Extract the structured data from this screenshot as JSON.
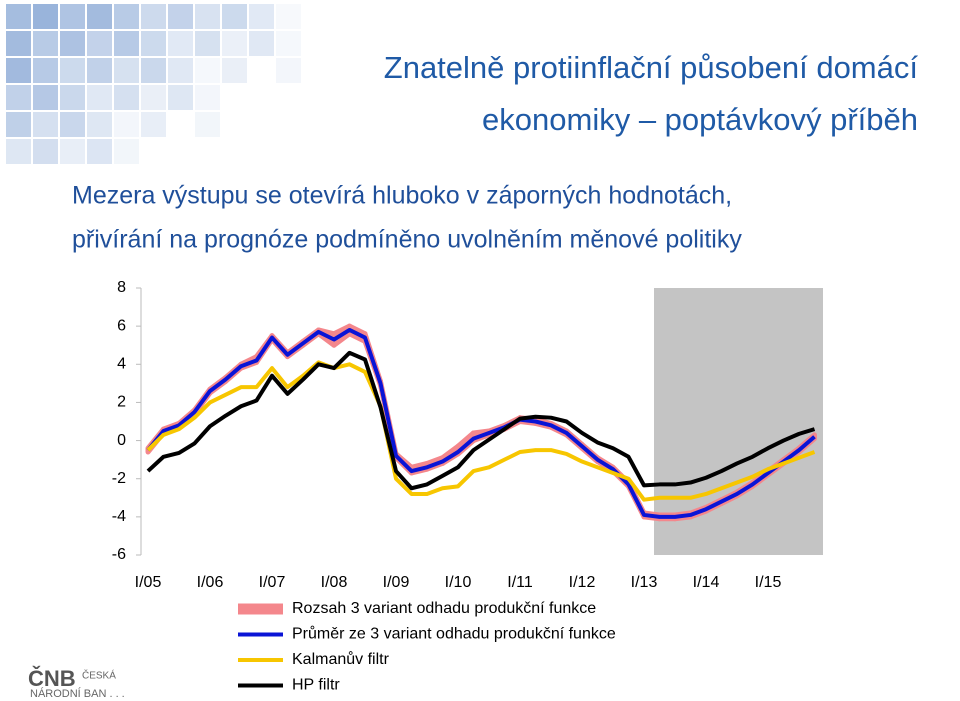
{
  "slide": {
    "title": [
      "Znatelně protiinflační působení domácí",
      "ekonomiky – poptávkový příběh"
    ],
    "logo": {
      "mark": "ČNB",
      "line1": "ČESKÁ",
      "line2": "NÁRODNÍ BAN . . ."
    }
  },
  "chart_data": {
    "type": "line",
    "subtitle": [
      "Mezera výstupu se otevírá hluboko v záporných hodnotách,",
      "přivírání na prognóze podmíněno uvolněním měnové politiky"
    ],
    "categories": [
      "I/05",
      null,
      null,
      null,
      "I/06",
      null,
      null,
      null,
      "I/07",
      null,
      null,
      null,
      "I/08",
      null,
      null,
      null,
      "I/09",
      null,
      null,
      null,
      "I/10",
      null,
      null,
      null,
      "I/11",
      null,
      null,
      null,
      "I/12",
      null,
      null,
      null,
      "I/13",
      null,
      null,
      null,
      "I/14",
      null,
      null,
      null,
      "I/15",
      null,
      null,
      null
    ],
    "ylim": [
      -6,
      8
    ],
    "yticks": [
      -6,
      -4,
      -2,
      0,
      2,
      4,
      6,
      8
    ],
    "legend": "bottom",
    "series": [
      {
        "name": "Rozsah 3 variant odhadu produkční funkce",
        "color": "#f4878c",
        "low": [
          -0.6,
          0.4,
          0.7,
          1.4,
          2.5,
          3.1,
          3.8,
          4.1,
          5.3,
          4.4,
          5.0,
          5.6,
          5.0,
          5.6,
          5.2,
          2.9,
          -0.9,
          -1.7,
          -1.5,
          -1.2,
          -0.7,
          0.0,
          0.3,
          0.6,
          1.0,
          0.9,
          0.7,
          0.3,
          -0.4,
          -1.1,
          -1.6,
          -2.4,
          -4.0,
          -4.1,
          -4.1,
          -4.0,
          -3.7,
          -3.3,
          -2.9,
          -2.4,
          -1.8,
          -1.2,
          -0.6,
          0.1
        ],
        "high": [
          -0.4,
          0.6,
          0.9,
          1.6,
          2.7,
          3.3,
          4.0,
          4.4,
          5.5,
          4.6,
          5.2,
          5.8,
          5.6,
          6.0,
          5.6,
          3.1,
          -0.7,
          -1.4,
          -1.2,
          -0.9,
          -0.3,
          0.4,
          0.5,
          0.8,
          1.2,
          1.1,
          0.9,
          0.5,
          -0.2,
          -0.9,
          -1.4,
          -2.2,
          -3.8,
          -3.9,
          -3.9,
          -3.8,
          -3.5,
          -3.1,
          -2.7,
          -2.2,
          -1.6,
          -1.0,
          -0.4,
          0.3
        ]
      },
      {
        "name": "Průměr ze 3 variant odhadu produkční funkce",
        "color": "#0a14d6",
        "values": [
          -0.5,
          0.5,
          0.8,
          1.5,
          2.6,
          3.2,
          3.9,
          4.2,
          5.4,
          4.5,
          5.1,
          5.7,
          5.3,
          5.8,
          5.4,
          3.0,
          -0.8,
          -1.6,
          -1.4,
          -1.1,
          -0.6,
          0.1,
          0.4,
          0.7,
          1.1,
          1.0,
          0.8,
          0.4,
          -0.3,
          -1.0,
          -1.5,
          -2.3,
          -3.9,
          -4.0,
          -4.0,
          -3.9,
          -3.6,
          -3.2,
          -2.8,
          -2.3,
          -1.7,
          -1.1,
          -0.5,
          0.2
        ]
      },
      {
        "name": "Kalmanův filtr",
        "color": "#f7c600",
        "values": [
          -0.5,
          0.3,
          0.6,
          1.2,
          2.0,
          2.4,
          2.8,
          2.8,
          3.8,
          2.8,
          3.4,
          4.1,
          3.8,
          4.0,
          3.6,
          1.8,
          -2.0,
          -2.8,
          -2.8,
          -2.5,
          -2.4,
          -1.6,
          -1.4,
          -1.0,
          -0.6,
          -0.5,
          -0.5,
          -0.7,
          -1.1,
          -1.4,
          -1.7,
          -2.0,
          -3.1,
          -3.0,
          -3.0,
          -3.0,
          -2.8,
          -2.5,
          -2.2,
          -1.9,
          -1.5,
          -1.2,
          -0.9,
          -0.6
        ]
      },
      {
        "name": "HP filtr",
        "color": "#000000",
        "values": [
          -1.6,
          -0.85,
          -0.65,
          -0.15,
          0.75,
          1.3,
          1.8,
          2.1,
          3.4,
          2.45,
          3.2,
          4.0,
          3.8,
          4.6,
          4.25,
          1.75,
          -1.6,
          -2.5,
          -2.3,
          -1.85,
          -1.4,
          -0.5,
          0.05,
          0.6,
          1.15,
          1.25,
          1.2,
          1.0,
          0.4,
          -0.1,
          -0.4,
          -0.85,
          -2.35,
          -2.3,
          -2.3,
          -2.2,
          -1.95,
          -1.6,
          -1.2,
          -0.85,
          -0.4,
          0.0,
          0.35,
          0.6
        ]
      }
    ]
  }
}
